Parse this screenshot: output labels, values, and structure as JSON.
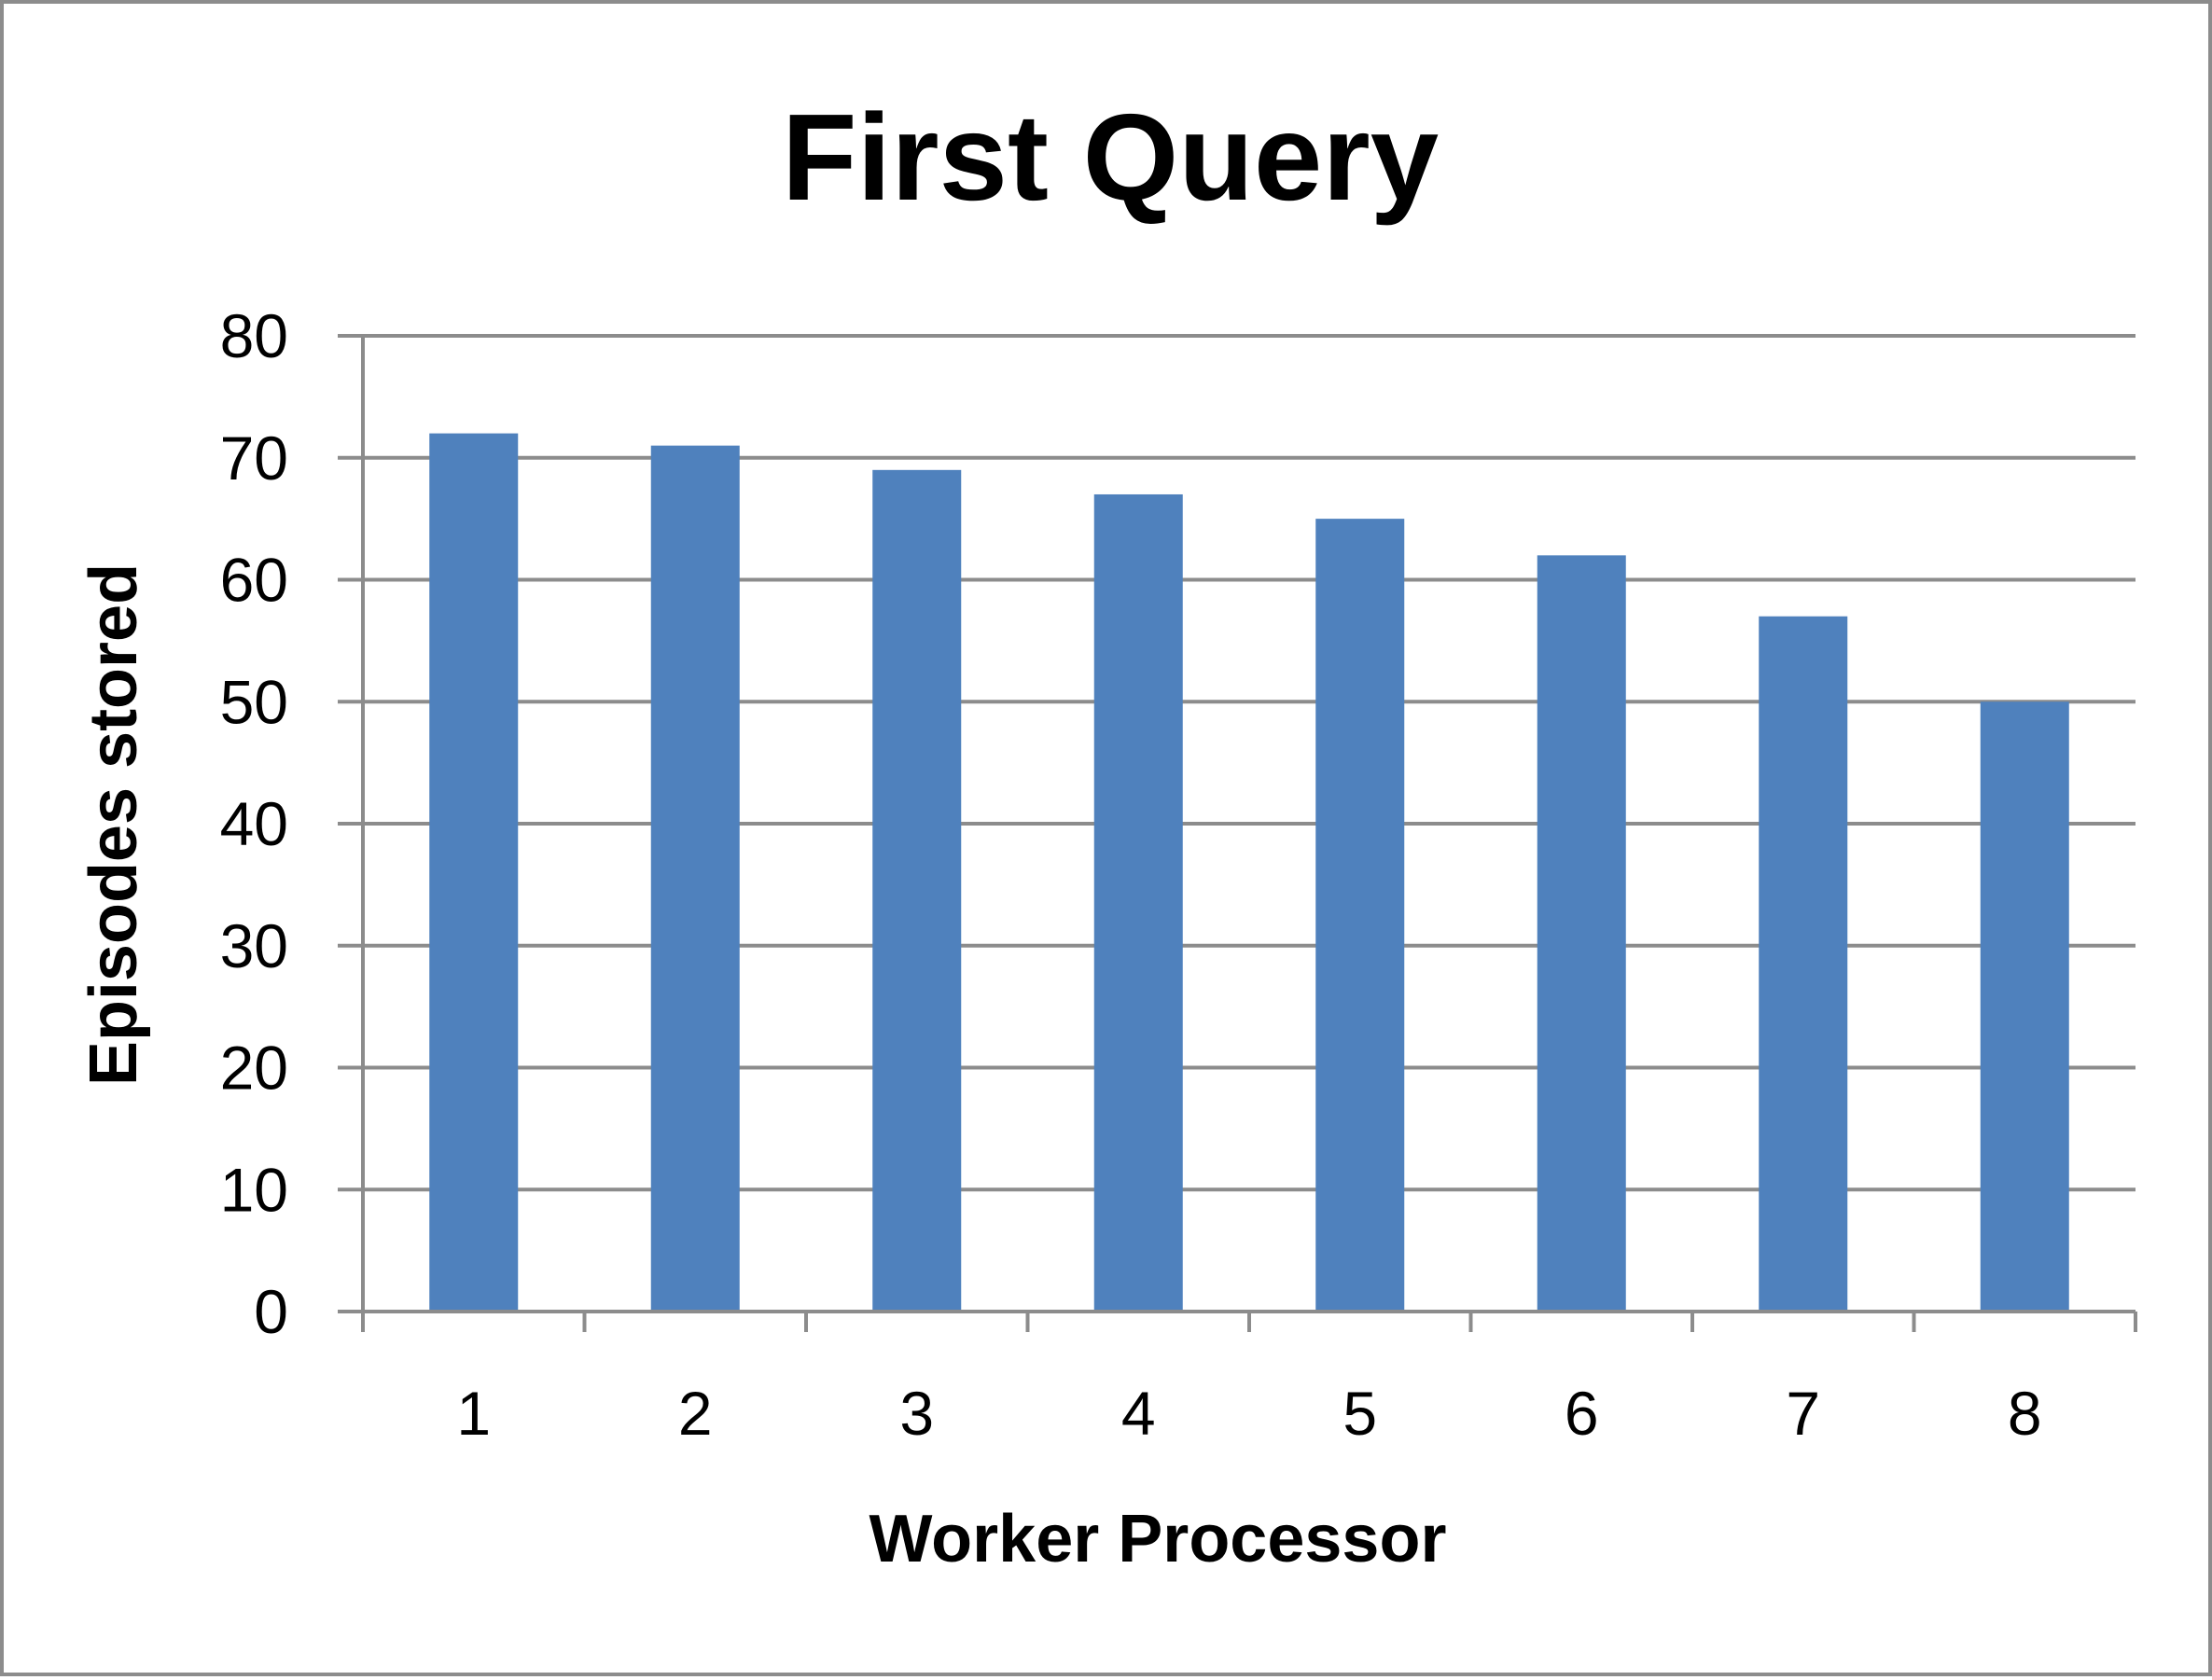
{
  "chart_data": {
    "type": "bar",
    "title": "First Query",
    "xlabel": "Worker Processor",
    "ylabel": "Episodes stored",
    "categories": [
      "1",
      "2",
      "3",
      "4",
      "5",
      "6",
      "7",
      "8"
    ],
    "series": [
      {
        "values": [
          72,
          71,
          69,
          67,
          65,
          62,
          57,
          50
        ]
      }
    ],
    "ylim": [
      0,
      80
    ],
    "yticks": [
      "0",
      "10",
      "20",
      "30",
      "40",
      "50",
      "60",
      "70",
      "80"
    ],
    "grid": true,
    "legend": "none",
    "colors": {
      "bar": "#4f81bd",
      "grid": "#8c8c8c",
      "axis": "#8c8c8c",
      "text": "#000000"
    }
  }
}
